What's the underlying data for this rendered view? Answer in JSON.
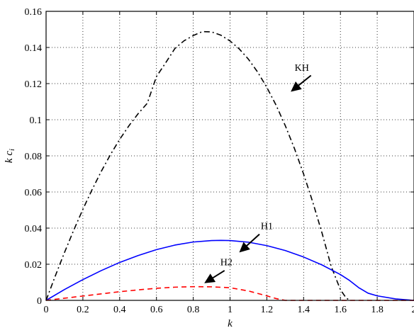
{
  "chart_data": {
    "type": "line",
    "xlabel": "k",
    "ylabel_main": "k c",
    "ylabel_sub": "i",
    "xlim": [
      0,
      2
    ],
    "ylim": [
      0,
      0.16
    ],
    "grid": true,
    "xticks": [
      0,
      0.2,
      0.4,
      0.6,
      0.8,
      1,
      1.2,
      1.4,
      1.6,
      1.8,
      2
    ],
    "xtick_labels": [
      "0",
      "0.2",
      "0.4",
      "0.6",
      "0.8",
      "1",
      "1.2",
      "1.4",
      "1.6",
      "1.8",
      "2"
    ],
    "yticks": [
      0,
      0.02,
      0.04,
      0.06,
      0.08,
      0.1,
      0.12,
      0.14,
      0.16
    ],
    "ytick_labels": [
      "0",
      "0.02",
      "0.04",
      "0.06",
      "0.08",
      "0.1",
      "0.12",
      "0.14",
      "0.16"
    ],
    "series": [
      {
        "name": "KH",
        "color": "#000000",
        "style": "dashdot",
        "x": [
          0,
          0.05,
          0.1,
          0.15,
          0.2,
          0.25,
          0.3,
          0.35,
          0.4,
          0.45,
          0.5,
          0.55,
          0.6,
          0.65,
          0.7,
          0.75,
          0.8,
          0.85,
          0.9,
          0.95,
          1.0,
          1.05,
          1.1,
          1.15,
          1.2,
          1.25,
          1.3,
          1.35,
          1.4,
          1.45,
          1.5,
          1.55,
          1.6,
          1.63,
          1.65
        ],
        "y": [
          0,
          0.0135,
          0.0265,
          0.0388,
          0.0504,
          0.0613,
          0.0714,
          0.0807,
          0.0891,
          0.0966,
          0.1033,
          0.1091,
          0.1239,
          0.1315,
          0.1394,
          0.1437,
          0.1466,
          0.1488,
          0.1486,
          0.1468,
          0.1436,
          0.1392,
          0.1335,
          0.1264,
          0.1179,
          0.1081,
          0.0968,
          0.0841,
          0.0699,
          0.0543,
          0.0373,
          0.0188,
          0.0059,
          0.0015,
          0
        ]
      },
      {
        "name": "H1",
        "color": "#0000ff",
        "style": "solid",
        "x": [
          0,
          0.1,
          0.2,
          0.3,
          0.4,
          0.5,
          0.6,
          0.7,
          0.8,
          0.9,
          0.95,
          1.0,
          1.1,
          1.2,
          1.3,
          1.4,
          1.5,
          1.6,
          1.65,
          1.7,
          1.75,
          1.8,
          1.9,
          2.0
        ],
        "y": [
          0,
          0.006,
          0.0115,
          0.0165,
          0.021,
          0.0248,
          0.0281,
          0.0306,
          0.0323,
          0.0331,
          0.0332,
          0.0331,
          0.0322,
          0.0303,
          0.0276,
          0.024,
          0.0196,
          0.0143,
          0.011,
          0.007,
          0.004,
          0.0025,
          0.0008,
          0
        ]
      },
      {
        "name": "H2",
        "color": "#ff0000",
        "style": "dashed",
        "x": [
          0,
          0.1,
          0.2,
          0.3,
          0.4,
          0.5,
          0.6,
          0.7,
          0.8,
          0.9,
          1.0,
          1.1,
          1.2,
          1.25,
          1.3,
          1.5,
          2.0
        ],
        "y": [
          0,
          0.0012,
          0.0024,
          0.0036,
          0.0048,
          0.0058,
          0.0067,
          0.0073,
          0.0076,
          0.0075,
          0.007,
          0.0052,
          0.0025,
          0.001,
          0,
          0,
          0
        ]
      }
    ],
    "annotations": [
      {
        "text": "KH",
        "text_at": [
          1.39,
          0.127
        ],
        "arrow_from": [
          1.44,
          0.1245
        ],
        "arrow_to": [
          1.33,
          0.1155
        ]
      },
      {
        "text": "H1",
        "text_at": [
          1.2,
          0.0395
        ],
        "arrow_from": [
          1.16,
          0.0366
        ],
        "arrow_to": [
          1.05,
          0.0265
        ]
      },
      {
        "text": "H2",
        "text_at": [
          0.98,
          0.0195
        ],
        "arrow_from": [
          0.97,
          0.0165
        ],
        "arrow_to": [
          0.86,
          0.0095
        ]
      }
    ]
  }
}
